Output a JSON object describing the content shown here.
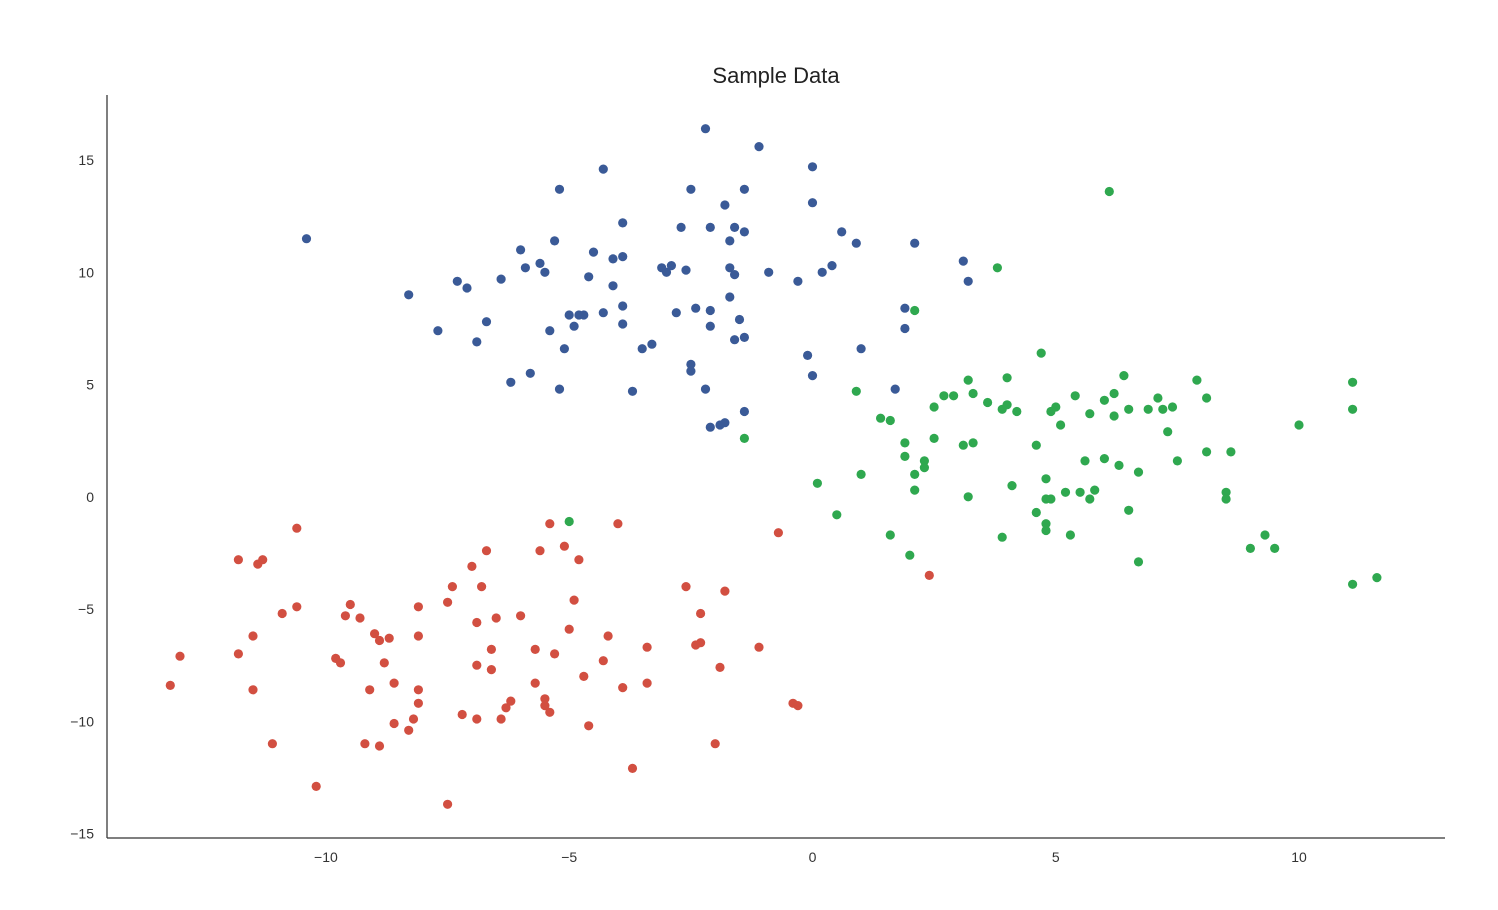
{
  "chart_data": {
    "type": "scatter",
    "title": "Sample Data",
    "xlabel": "",
    "ylabel": "",
    "xlim": [
      -14.5,
      13.0
    ],
    "ylim": [
      -15.2,
      17.9
    ],
    "x_ticks": [
      -10,
      -5,
      0,
      5,
      10
    ],
    "y_ticks": [
      -15,
      -10,
      -5,
      0,
      5,
      10,
      15
    ],
    "x_tick_labels": [
      "−10",
      "−5",
      "0",
      "5",
      "10"
    ],
    "y_tick_labels": [
      "−15",
      "−10",
      "−5",
      "0",
      "5",
      "10",
      "15"
    ],
    "grid": false,
    "legend": "none",
    "series": [
      {
        "color": "#3a5a97",
        "points": [
          [
            -10.4,
            11.5
          ],
          [
            -8.3,
            9.0
          ],
          [
            -7.7,
            7.4
          ],
          [
            -7.3,
            9.6
          ],
          [
            -7.1,
            9.3
          ],
          [
            -6.9,
            6.9
          ],
          [
            -6.7,
            7.8
          ],
          [
            -6.4,
            9.7
          ],
          [
            -6.2,
            5.1
          ],
          [
            -6.0,
            11.0
          ],
          [
            -5.9,
            10.2
          ],
          [
            -5.8,
            5.5
          ],
          [
            -5.6,
            10.4
          ],
          [
            -5.5,
            10.0
          ],
          [
            -5.4,
            7.4
          ],
          [
            -5.3,
            11.4
          ],
          [
            -5.2,
            13.7
          ],
          [
            -5.2,
            4.8
          ],
          [
            -5.1,
            6.6
          ],
          [
            -5.0,
            8.1
          ],
          [
            -4.9,
            7.6
          ],
          [
            -4.8,
            8.1
          ],
          [
            -4.7,
            8.1
          ],
          [
            -4.6,
            9.8
          ],
          [
            -4.5,
            10.9
          ],
          [
            -4.3,
            8.2
          ],
          [
            -4.3,
            14.6
          ],
          [
            -4.1,
            10.6
          ],
          [
            -4.1,
            9.4
          ],
          [
            -3.9,
            12.2
          ],
          [
            -3.9,
            8.5
          ],
          [
            -3.9,
            7.7
          ],
          [
            -3.9,
            10.7
          ],
          [
            -3.7,
            4.7
          ],
          [
            -3.5,
            6.6
          ],
          [
            -3.3,
            6.8
          ],
          [
            -3.1,
            10.2
          ],
          [
            -3.0,
            10.0
          ],
          [
            -2.9,
            10.3
          ],
          [
            -2.8,
            8.2
          ],
          [
            -2.7,
            12.0
          ],
          [
            -2.6,
            10.1
          ],
          [
            -2.5,
            13.7
          ],
          [
            -2.5,
            5.6
          ],
          [
            -2.5,
            5.9
          ],
          [
            -2.4,
            8.4
          ],
          [
            -2.2,
            16.4
          ],
          [
            -2.2,
            4.8
          ],
          [
            -2.1,
            8.3
          ],
          [
            -2.1,
            7.6
          ],
          [
            -2.1,
            12.0
          ],
          [
            -2.1,
            3.1
          ],
          [
            -1.9,
            3.2
          ],
          [
            -1.8,
            3.3
          ],
          [
            -1.8,
            13.0
          ],
          [
            -1.7,
            10.2
          ],
          [
            -1.7,
            11.4
          ],
          [
            -1.7,
            8.9
          ],
          [
            -1.6,
            9.9
          ],
          [
            -1.6,
            12.0
          ],
          [
            -1.6,
            7.0
          ],
          [
            -1.5,
            7.9
          ],
          [
            -1.4,
            11.8
          ],
          [
            -1.4,
            3.8
          ],
          [
            -1.4,
            7.1
          ],
          [
            -1.4,
            13.7
          ],
          [
            -1.1,
            15.6
          ],
          [
            -0.9,
            10.0
          ],
          [
            -0.3,
            9.6
          ],
          [
            -0.1,
            6.3
          ],
          [
            0.0,
            14.7
          ],
          [
            0.0,
            13.1
          ],
          [
            0.0,
            5.4
          ],
          [
            0.2,
            10.0
          ],
          [
            0.4,
            10.3
          ],
          [
            0.6,
            11.8
          ],
          [
            0.9,
            11.3
          ],
          [
            1.0,
            6.6
          ],
          [
            1.9,
            8.4
          ],
          [
            1.9,
            7.5
          ],
          [
            2.1,
            11.3
          ],
          [
            3.1,
            10.5
          ],
          [
            3.2,
            9.6
          ],
          [
            1.7,
            4.8
          ]
        ]
      },
      {
        "color": "#2fa84f",
        "points": [
          [
            6.1,
            13.6
          ],
          [
            3.8,
            10.2
          ],
          [
            2.1,
            8.3
          ],
          [
            4.7,
            6.4
          ],
          [
            -1.4,
            2.6
          ],
          [
            -5.0,
            -1.1
          ],
          [
            0.1,
            0.6
          ],
          [
            0.5,
            -0.8
          ],
          [
            0.9,
            4.7
          ],
          [
            1.0,
            1.0
          ],
          [
            1.4,
            3.5
          ],
          [
            1.6,
            3.4
          ],
          [
            1.6,
            -1.7
          ],
          [
            1.9,
            1.8
          ],
          [
            1.9,
            2.4
          ],
          [
            2.0,
            -2.6
          ],
          [
            2.1,
            1.0
          ],
          [
            2.1,
            0.3
          ],
          [
            2.3,
            1.6
          ],
          [
            2.3,
            1.3
          ],
          [
            2.5,
            2.6
          ],
          [
            2.5,
            4.0
          ],
          [
            2.7,
            4.5
          ],
          [
            2.9,
            4.5
          ],
          [
            3.1,
            2.3
          ],
          [
            3.2,
            5.2
          ],
          [
            3.2,
            0.0
          ],
          [
            3.3,
            2.4
          ],
          [
            3.3,
            4.6
          ],
          [
            3.6,
            4.2
          ],
          [
            3.9,
            3.9
          ],
          [
            3.9,
            -1.8
          ],
          [
            4.0,
            5.3
          ],
          [
            4.0,
            4.1
          ],
          [
            4.1,
            0.5
          ],
          [
            4.2,
            3.8
          ],
          [
            4.6,
            2.3
          ],
          [
            4.6,
            -0.7
          ],
          [
            4.8,
            -0.1
          ],
          [
            4.8,
            0.8
          ],
          [
            4.8,
            -1.2
          ],
          [
            4.8,
            -1.5
          ],
          [
            4.9,
            -0.1
          ],
          [
            4.9,
            3.8
          ],
          [
            5.0,
            4.0
          ],
          [
            5.1,
            3.2
          ],
          [
            5.2,
            0.2
          ],
          [
            5.3,
            -1.7
          ],
          [
            5.4,
            4.5
          ],
          [
            5.5,
            0.2
          ],
          [
            5.6,
            1.6
          ],
          [
            5.7,
            3.7
          ],
          [
            5.7,
            -0.1
          ],
          [
            5.8,
            0.3
          ],
          [
            6.0,
            4.3
          ],
          [
            6.0,
            1.7
          ],
          [
            6.2,
            4.6
          ],
          [
            6.2,
            3.6
          ],
          [
            6.3,
            1.4
          ],
          [
            6.4,
            5.4
          ],
          [
            6.5,
            3.9
          ],
          [
            6.5,
            -0.6
          ],
          [
            6.7,
            1.1
          ],
          [
            6.7,
            -2.9
          ],
          [
            6.9,
            3.9
          ],
          [
            7.1,
            4.4
          ],
          [
            7.2,
            3.9
          ],
          [
            7.3,
            2.9
          ],
          [
            7.4,
            4.0
          ],
          [
            7.5,
            1.6
          ],
          [
            7.9,
            5.2
          ],
          [
            8.1,
            2.0
          ],
          [
            8.1,
            4.4
          ],
          [
            8.5,
            0.2
          ],
          [
            8.5,
            -0.1
          ],
          [
            8.6,
            2.0
          ],
          [
            9.0,
            -2.3
          ],
          [
            9.3,
            -1.7
          ],
          [
            9.5,
            -2.3
          ],
          [
            10.0,
            3.2
          ],
          [
            11.1,
            5.1
          ],
          [
            11.1,
            3.9
          ],
          [
            11.1,
            -3.9
          ],
          [
            11.6,
            -3.6
          ]
        ]
      },
      {
        "color": "#d24f41",
        "points": [
          [
            -13.2,
            -8.4
          ],
          [
            -13.0,
            -7.1
          ],
          [
            -11.8,
            -2.8
          ],
          [
            -11.8,
            -7.0
          ],
          [
            -11.5,
            -6.2
          ],
          [
            -11.5,
            -8.6
          ],
          [
            -11.4,
            -3.0
          ],
          [
            -11.3,
            -2.8
          ],
          [
            -11.1,
            -11.0
          ],
          [
            -10.9,
            -5.2
          ],
          [
            -10.6,
            -1.4
          ],
          [
            -10.6,
            -4.9
          ],
          [
            -10.2,
            -12.9
          ],
          [
            -9.8,
            -7.2
          ],
          [
            -9.7,
            -7.4
          ],
          [
            -9.6,
            -5.3
          ],
          [
            -9.5,
            -4.8
          ],
          [
            -9.3,
            -5.4
          ],
          [
            -9.2,
            -11.0
          ],
          [
            -9.1,
            -8.6
          ],
          [
            -9.0,
            -6.1
          ],
          [
            -8.9,
            -6.4
          ],
          [
            -8.9,
            -11.1
          ],
          [
            -8.8,
            -7.4
          ],
          [
            -8.7,
            -6.3
          ],
          [
            -8.6,
            -8.3
          ],
          [
            -8.6,
            -10.1
          ],
          [
            -8.3,
            -10.4
          ],
          [
            -8.2,
            -9.9
          ],
          [
            -8.1,
            -6.2
          ],
          [
            -8.1,
            -4.9
          ],
          [
            -8.1,
            -8.6
          ],
          [
            -8.1,
            -9.2
          ],
          [
            -7.5,
            -4.7
          ],
          [
            -7.5,
            -13.7
          ],
          [
            -7.4,
            -4.0
          ],
          [
            -7.2,
            -9.7
          ],
          [
            -7.0,
            -3.1
          ],
          [
            -6.9,
            -5.6
          ],
          [
            -6.9,
            -7.5
          ],
          [
            -6.9,
            -9.9
          ],
          [
            -6.8,
            -4.0
          ],
          [
            -6.7,
            -2.4
          ],
          [
            -6.6,
            -7.7
          ],
          [
            -6.6,
            -6.8
          ],
          [
            -6.5,
            -5.4
          ],
          [
            -6.4,
            -9.9
          ],
          [
            -6.3,
            -9.4
          ],
          [
            -6.2,
            -9.1
          ],
          [
            -6.0,
            -5.3
          ],
          [
            -5.7,
            -8.3
          ],
          [
            -5.7,
            -6.8
          ],
          [
            -5.6,
            -2.4
          ],
          [
            -5.5,
            -9.3
          ],
          [
            -5.5,
            -9.0
          ],
          [
            -5.4,
            -1.2
          ],
          [
            -5.4,
            -9.6
          ],
          [
            -5.3,
            -7.0
          ],
          [
            -5.1,
            -2.2
          ],
          [
            -5.0,
            -5.9
          ],
          [
            -4.9,
            -4.6
          ],
          [
            -4.8,
            -2.8
          ],
          [
            -4.7,
            -8.0
          ],
          [
            -4.6,
            -10.2
          ],
          [
            -4.3,
            -7.3
          ],
          [
            -4.2,
            -6.2
          ],
          [
            -4.0,
            -1.2
          ],
          [
            -3.9,
            -8.5
          ],
          [
            -3.7,
            -12.1
          ],
          [
            -3.4,
            -6.7
          ],
          [
            -3.4,
            -8.3
          ],
          [
            -2.6,
            -4.0
          ],
          [
            -2.4,
            -6.6
          ],
          [
            -2.3,
            -6.5
          ],
          [
            -2.3,
            -5.2
          ],
          [
            -2.0,
            -11.0
          ],
          [
            -1.9,
            -7.6
          ],
          [
            -1.8,
            -4.2
          ],
          [
            -1.1,
            -6.7
          ],
          [
            -0.7,
            -1.6
          ],
          [
            -0.4,
            -9.2
          ],
          [
            -0.3,
            -9.3
          ],
          [
            2.4,
            -3.5
          ]
        ]
      }
    ]
  }
}
